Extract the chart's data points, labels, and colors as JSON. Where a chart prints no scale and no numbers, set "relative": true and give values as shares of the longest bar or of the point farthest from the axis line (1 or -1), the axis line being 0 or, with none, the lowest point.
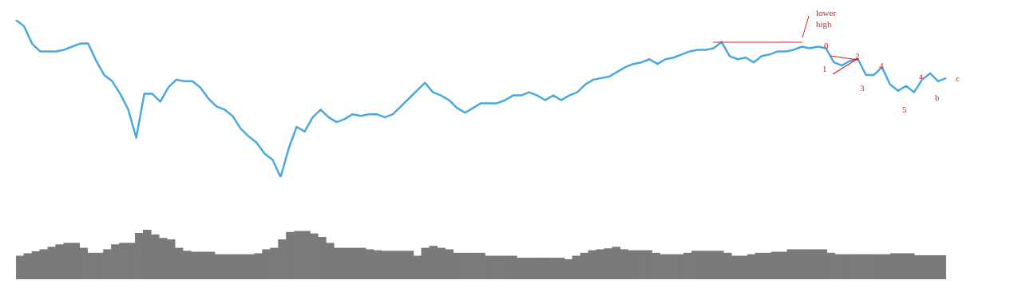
{
  "chart_data": [
    {
      "type": "line",
      "relative": true,
      "legend": false,
      "categories": [
        null,
        null,
        null,
        null,
        null,
        null,
        null,
        null,
        null,
        null,
        null,
        null,
        null,
        null,
        null,
        null,
        null,
        null,
        null,
        null,
        null,
        null,
        null,
        null,
        null,
        null,
        null,
        null,
        null,
        null,
        null,
        null,
        null,
        null,
        null,
        null,
        null,
        null,
        null,
        null,
        null,
        null,
        null,
        null,
        null,
        null,
        null,
        null,
        null,
        null,
        null,
        null,
        null,
        null,
        null,
        null,
        null,
        null,
        null,
        null,
        null,
        null,
        null,
        null,
        null,
        null,
        null,
        null,
        null,
        null,
        null,
        null,
        null,
        null,
        null,
        null,
        null,
        null,
        null,
        null,
        null,
        null,
        null,
        null,
        null,
        null,
        null,
        null,
        null,
        null,
        null,
        null,
        null,
        null,
        null,
        null,
        null,
        null,
        null,
        null,
        null,
        null,
        null,
        null,
        null,
        null,
        null,
        null,
        null,
        null,
        null,
        null,
        null,
        null,
        null,
        null,
        null
      ],
      "series": [
        {
          "color": "#4aa8e0",
          "values": [
            1.0,
            0.96,
            0.85,
            0.8,
            0.8,
            0.8,
            0.81,
            0.83,
            0.85,
            0.85,
            0.74,
            0.65,
            0.61,
            0.53,
            0.43,
            0.25,
            0.53,
            0.53,
            0.48,
            0.57,
            0.62,
            0.61,
            0.61,
            0.57,
            0.5,
            0.45,
            0.43,
            0.39,
            0.31,
            0.26,
            0.22,
            0.15,
            0.11,
            0,
            0.18,
            0.32,
            0.29,
            0.38,
            0.43,
            0.38,
            0.35,
            0.37,
            0.4,
            0.39,
            0.4,
            0.4,
            0.38,
            0.4,
            0.45,
            0.5,
            0.55,
            0.6,
            0.54,
            0.52,
            0.49,
            0.44,
            0.41,
            0.44,
            0.47,
            0.47,
            0.47,
            0.49,
            0.52,
            0.52,
            0.54,
            0.52,
            0.49,
            0.52,
            0.49,
            0.52,
            0.54,
            0.59,
            0.62,
            0.63,
            0.64,
            0.67,
            0.7,
            0.72,
            0.73,
            0.75,
            0.72,
            0.75,
            0.76,
            0.78,
            0.8,
            0.81,
            0.81,
            0.82,
            0.86,
            0.77,
            0.75,
            0.76,
            0.73,
            0.77,
            0.78,
            0.8,
            0.8,
            0.81,
            0.83,
            0.82,
            0.83,
            0.82,
            0.73,
            0.71,
            0.74,
            0.75,
            0.65,
            0.65,
            0.7,
            0.59,
            0.55,
            0.58,
            0.54,
            0.62,
            0.66,
            0.61,
            0.63
          ]
        }
      ],
      "annotations": [
        "lower high",
        "0",
        "1",
        "2",
        "3",
        "4",
        "5",
        "a",
        "b",
        "c"
      ]
    },
    {
      "type": "bar",
      "relative": true,
      "legend": false,
      "color": "#7a7a7a",
      "categories": [
        null,
        null,
        null,
        null,
        null,
        null,
        null,
        null,
        null,
        null,
        null,
        null,
        null,
        null,
        null,
        null,
        null,
        null,
        null,
        null,
        null,
        null,
        null,
        null,
        null,
        null,
        null,
        null,
        null,
        null,
        null,
        null,
        null,
        null,
        null,
        null,
        null,
        null,
        null,
        null,
        null,
        null,
        null,
        null,
        null,
        null,
        null,
        null,
        null,
        null,
        null,
        null,
        null,
        null,
        null,
        null,
        null,
        null,
        null,
        null,
        null,
        null,
        null,
        null,
        null,
        null,
        null,
        null,
        null,
        null,
        null,
        null,
        null,
        null,
        null,
        null,
        null,
        null,
        null,
        null,
        null,
        null,
        null,
        null,
        null,
        null,
        null,
        null,
        null,
        null,
        null,
        null,
        null,
        null,
        null,
        null,
        null,
        null,
        null,
        null,
        null,
        null,
        null,
        null,
        null,
        null,
        null,
        null,
        null,
        null,
        null,
        null,
        null,
        null,
        null,
        null,
        null
      ],
      "values": [
        0.47,
        0.52,
        0.56,
        0.6,
        0.65,
        0.7,
        0.73,
        0.73,
        0.63,
        0.53,
        0.53,
        0.6,
        0.7,
        0.73,
        0.73,
        0.93,
        1.0,
        0.9,
        0.83,
        0.8,
        0.63,
        0.57,
        0.55,
        0.55,
        0.55,
        0.5,
        0.5,
        0.5,
        0.5,
        0.5,
        0.52,
        0.6,
        0.63,
        0.8,
        0.95,
        0.97,
        0.97,
        0.92,
        0.85,
        0.73,
        0.63,
        0.63,
        0.63,
        0.63,
        0.6,
        0.58,
        0.57,
        0.57,
        0.57,
        0.57,
        0.47,
        0.63,
        0.67,
        0.63,
        0.6,
        0.53,
        0.53,
        0.53,
        0.53,
        0.47,
        0.47,
        0.47,
        0.47,
        0.43,
        0.43,
        0.43,
        0.43,
        0.43,
        0.43,
        0.4,
        0.47,
        0.53,
        0.58,
        0.6,
        0.62,
        0.65,
        0.6,
        0.58,
        0.58,
        0.58,
        0.53,
        0.5,
        0.5,
        0.5,
        0.53,
        0.57,
        0.57,
        0.57,
        0.57,
        0.53,
        0.47,
        0.47,
        0.5,
        0.53,
        0.53,
        0.55,
        0.55,
        0.6,
        0.6,
        0.6,
        0.6,
        0.6,
        0.53,
        0.5,
        0.5,
        0.5,
        0.5,
        0.5,
        0.5,
        0.5,
        0.52,
        0.52,
        0.52,
        0.48,
        0.48,
        0.48,
        0.48
      ]
    }
  ]
}
